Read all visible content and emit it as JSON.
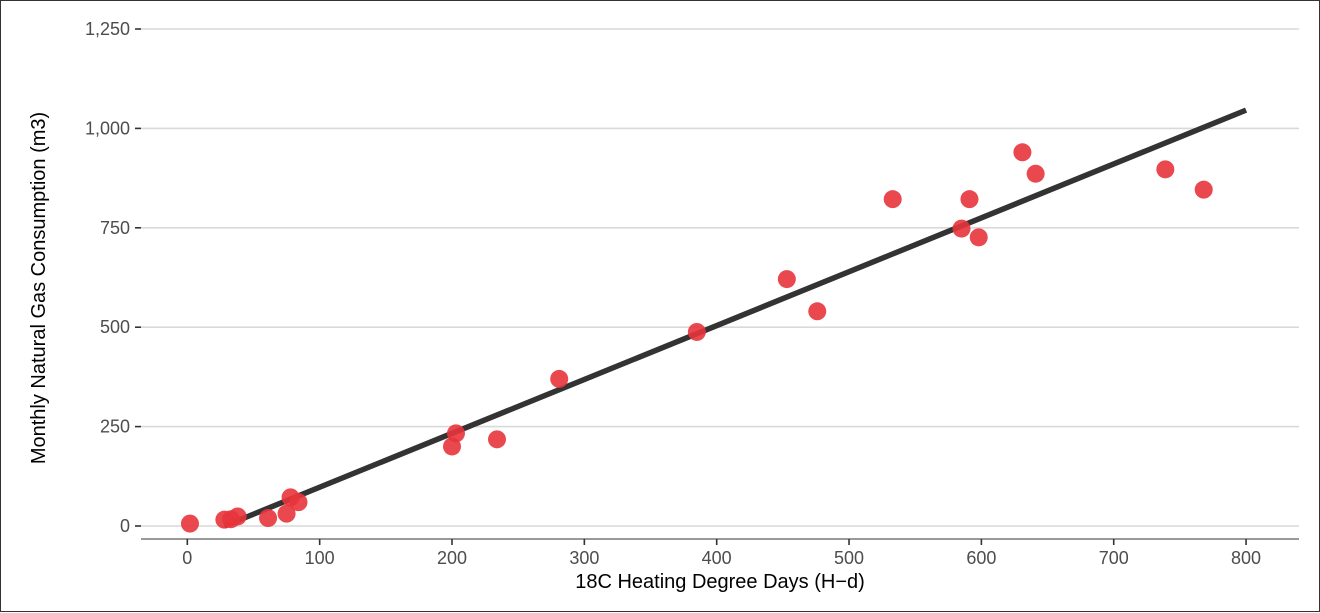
{
  "chart_data": {
    "type": "scatter",
    "title": "",
    "xlabel": "18C Heating Degree Days (H−d)",
    "ylabel": "Monthly Natural Gas Consumption (m3)",
    "xlim": [
      -35,
      840
    ],
    "ylim": [
      0,
      1250
    ],
    "xticks": [
      0,
      100,
      200,
      300,
      400,
      500,
      600,
      700,
      800
    ],
    "xtick_labels": [
      "0",
      "100",
      "200",
      "300",
      "400",
      "500",
      "600",
      "700",
      "800"
    ],
    "yticks": [
      0,
      250,
      500,
      750,
      1000,
      1250
    ],
    "ytick_labels": [
      "0",
      "250",
      "500",
      "750",
      "1,000",
      "1,250"
    ],
    "grid": "horizontal",
    "points": [
      {
        "x": 2,
        "y": 6
      },
      {
        "x": 28,
        "y": 16
      },
      {
        "x": 33,
        "y": 17
      },
      {
        "x": 38,
        "y": 24
      },
      {
        "x": 61,
        "y": 20
      },
      {
        "x": 75,
        "y": 31
      },
      {
        "x": 78,
        "y": 72
      },
      {
        "x": 84,
        "y": 60
      },
      {
        "x": 200,
        "y": 200
      },
      {
        "x": 203,
        "y": 233
      },
      {
        "x": 234,
        "y": 218
      },
      {
        "x": 281,
        "y": 370
      },
      {
        "x": 385,
        "y": 488
      },
      {
        "x": 453,
        "y": 621
      },
      {
        "x": 476,
        "y": 540
      },
      {
        "x": 533,
        "y": 822
      },
      {
        "x": 585,
        "y": 748
      },
      {
        "x": 591,
        "y": 822
      },
      {
        "x": 598,
        "y": 726
      },
      {
        "x": 631,
        "y": 940
      },
      {
        "x": 641,
        "y": 886
      },
      {
        "x": 739,
        "y": 897
      },
      {
        "x": 768,
        "y": 846
      }
    ],
    "fit_line": {
      "x": [
        28,
        800
      ],
      "y": [
        0,
        1046
      ]
    },
    "colors": {
      "points": "#e8343c",
      "fit_line": "#333333",
      "grid": "#d9d9d9",
      "axis": "#333333"
    }
  }
}
